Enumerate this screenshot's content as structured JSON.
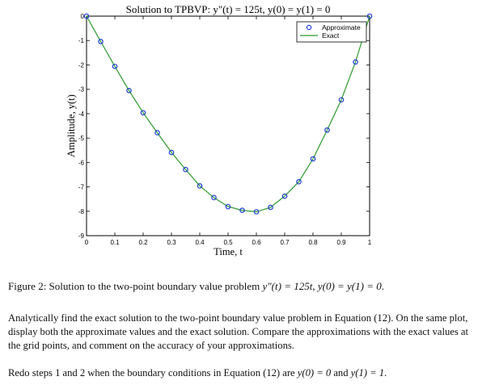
{
  "chart_data": {
    "type": "line",
    "title": "Solution to TPBVP: y\"(t) = 125t, y(0) = y(1) = 0",
    "xlabel": "Time, t",
    "ylabel": "Amplitude, y(t)",
    "xlim": [
      0,
      1
    ],
    "ylim": [
      -9,
      0
    ],
    "xticks": [
      "0",
      "0.1",
      "0.2",
      "0.3",
      "0.4",
      "0.5",
      "0.6",
      "0.7",
      "0.8",
      "0.9",
      "1"
    ],
    "yticks": [
      "0",
      "-1",
      "-2",
      "-3",
      "-4",
      "-5",
      "-6",
      "-7",
      "-8",
      "-9"
    ],
    "grid": false,
    "legend_position": "top-right",
    "series": [
      {
        "name": "Approximate",
        "marker": "circle",
        "color": "#1f3fd6",
        "x": [
          0,
          0.05,
          0.1,
          0.15,
          0.2,
          0.25,
          0.3,
          0.35,
          0.4,
          0.45,
          0.5,
          0.55,
          0.6,
          0.65,
          0.7,
          0.75,
          0.8,
          0.85,
          0.9,
          0.95,
          1
        ],
        "y": [
          0,
          -1.04,
          -2.06,
          -3.05,
          -3.96,
          -4.78,
          -5.59,
          -6.29,
          -6.96,
          -7.44,
          -7.81,
          -7.96,
          -8.02,
          -7.84,
          -7.38,
          -6.79,
          -5.85,
          -4.67,
          -3.43,
          -1.88,
          0
        ]
      },
      {
        "name": "Exact",
        "line": "solid",
        "color": "#2e9a2e",
        "x": [
          0,
          0.05,
          0.1,
          0.15,
          0.2,
          0.25,
          0.3,
          0.35,
          0.4,
          0.45,
          0.5,
          0.55,
          0.6,
          0.65,
          0.7,
          0.75,
          0.8,
          0.85,
          0.9,
          0.95,
          1
        ],
        "y": [
          0,
          -1.04,
          -2.06,
          -3.05,
          -3.96,
          -4.78,
          -5.59,
          -6.29,
          -6.96,
          -7.44,
          -7.81,
          -7.96,
          -8.02,
          -7.84,
          -7.38,
          -6.79,
          -5.85,
          -4.67,
          -3.43,
          -1.88,
          0
        ]
      }
    ]
  },
  "caption": {
    "prefix": "Figure 2: Solution to the two-point boundary value problem ",
    "eq1": "y″(t) = 125t, y(0) = y(1) = 0",
    "suffix": "."
  },
  "paragraphs": {
    "p1": "Analytically find the exact solution to the two-point boundary value problem in Equation (12). On the same plot, display both the approximate values and the exact solution. Compare the approximations with the exact values at the grid points, and comment on the accuracy of your approximations.",
    "p2_prefix": "Redo steps 1 and 2 when the boundary conditions in Equation (12) are ",
    "p2_eq1": "y(0) = 0",
    "p2_mid": " and ",
    "p2_eq2": "y(1) = 1",
    "p2_suffix": "."
  }
}
